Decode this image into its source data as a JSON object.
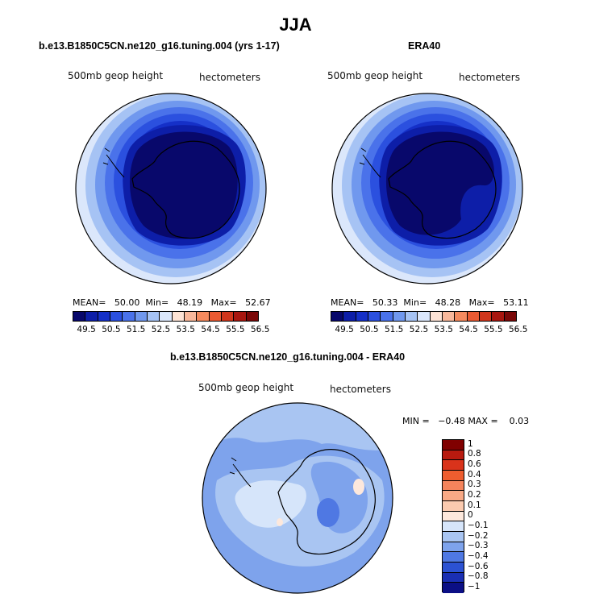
{
  "main_title": "JJA",
  "left_panel": {
    "title": "b.e13.B1850C5CN.ne120_g16.tuning.004 (yrs 1-17)",
    "field_label": "500mb geop height",
    "units": "hectometers",
    "stats": {
      "mean_label": "MEAN=",
      "mean": "50.00",
      "min_label": "Min=",
      "min": "48.19",
      "max_label": "Max=",
      "max": "52.67"
    },
    "colorbar_ticks": [
      "49.5",
      "50.5",
      "51.5",
      "52.5",
      "53.5",
      "54.5",
      "55.5",
      "56.5"
    ]
  },
  "right_panel": {
    "title": "ERA40",
    "field_label": "500mb geop height",
    "units": "hectometers",
    "stats": {
      "mean_label": "MEAN=",
      "mean": "50.33",
      "min_label": "Min=",
      "min": "48.28",
      "max_label": "Max=",
      "max": "53.11"
    },
    "colorbar_ticks": [
      "49.5",
      "50.5",
      "51.5",
      "52.5",
      "53.5",
      "54.5",
      "55.5",
      "56.5"
    ]
  },
  "diff_panel": {
    "title": "b.e13.B1850C5CN.ne120_g16.tuning.004 - ERA40",
    "field_label": "500mb geop height",
    "units": "hectometers",
    "minmax": {
      "min_label": "MIN =",
      "min": "−0.48",
      "max_label": "MAX =",
      "max": "0.03"
    },
    "colorbar_ticks": [
      "1",
      "0.8",
      "0.6",
      "0.4",
      "0.3",
      "0.2",
      "0.1",
      "0",
      "−0.1",
      "−0.2",
      "−0.3",
      "−0.4",
      "−0.6",
      "−0.8",
      "−1"
    ]
  },
  "colors": {
    "abs_scale": [
      "#08086b",
      "#0d1ea8",
      "#1530c8",
      "#2b50df",
      "#4a72ea",
      "#7098ee",
      "#a6c3f4",
      "#dbe7fb",
      "#fde3d5",
      "#f9b89b",
      "#f58a5e",
      "#ea5a32",
      "#d0361c",
      "#a8160f",
      "#7a0808"
    ],
    "diff_scale": [
      "#800000",
      "#b81a0f",
      "#d9331b",
      "#ee5d2f",
      "#f5845c",
      "#f8a986",
      "#fbcaaf",
      "#fde8dc",
      "#d6e5fa",
      "#a9c5f2",
      "#7ea3ec",
      "#4f78e3",
      "#2c52d3",
      "#1a2fb3",
      "#0b0f85"
    ]
  }
}
